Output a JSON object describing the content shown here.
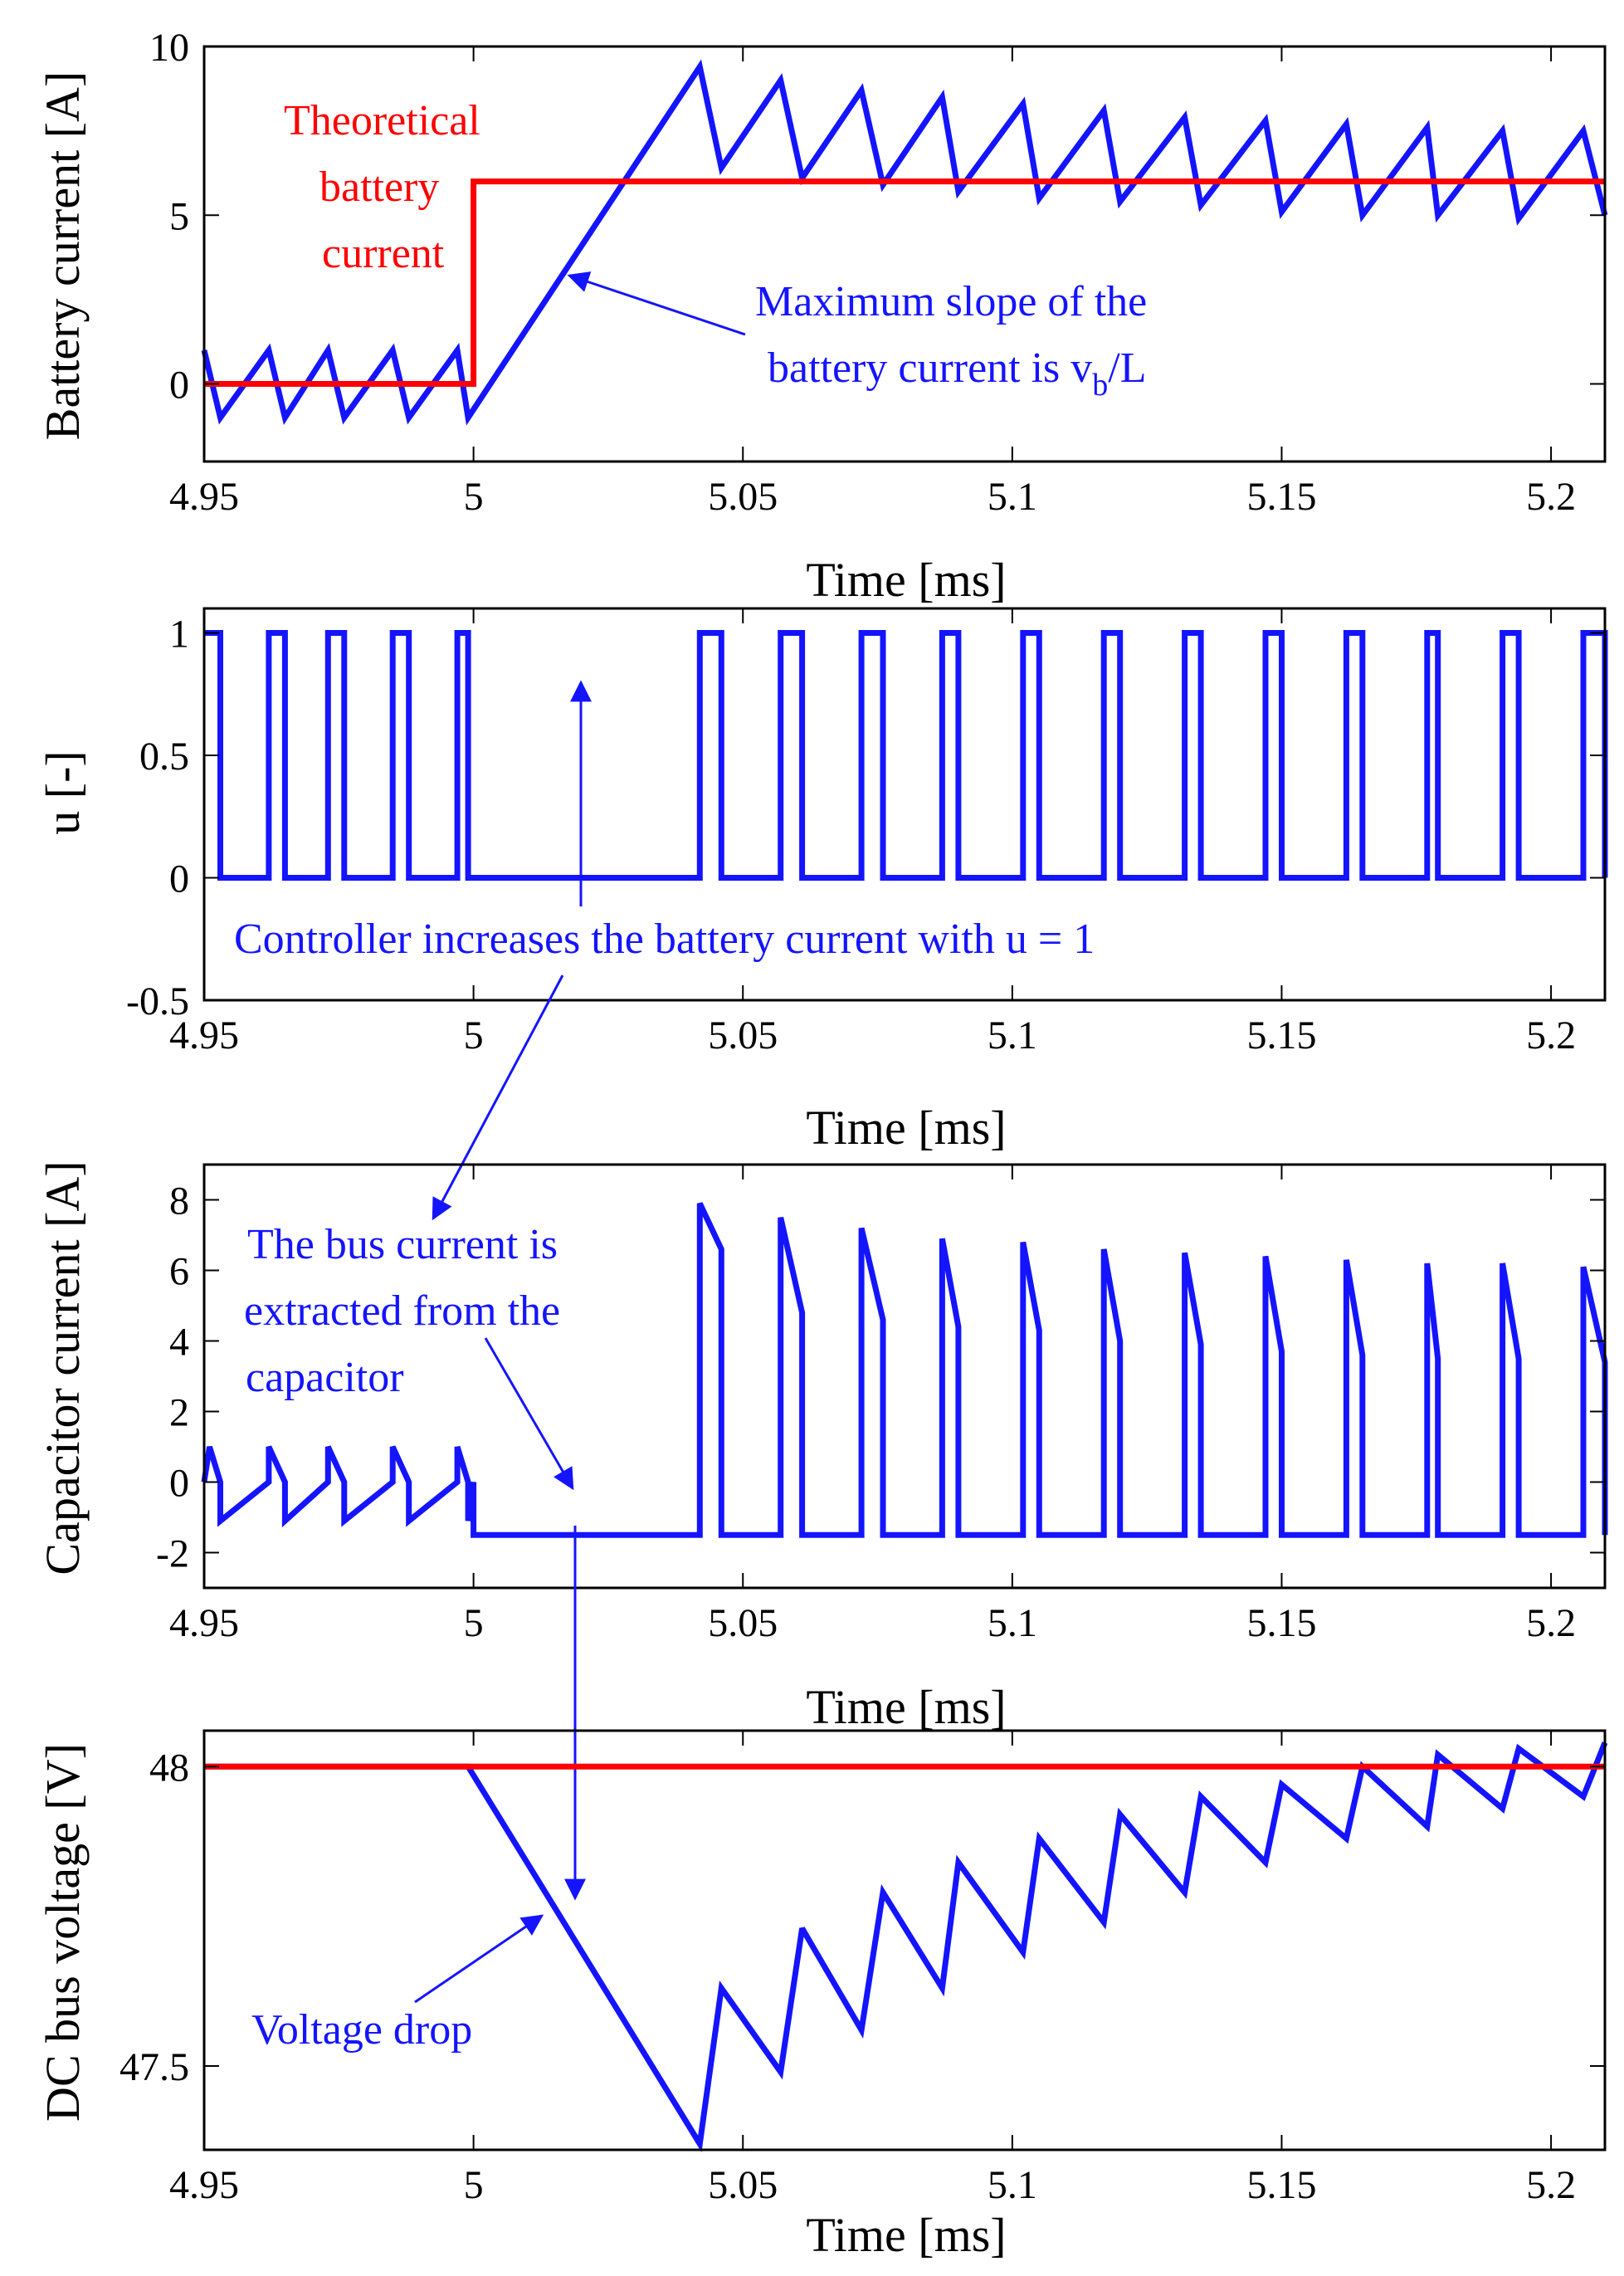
{
  "colors": {
    "signal": "#1414ff",
    "reference": "#ff0000",
    "axis": "#000000",
    "annotation_blue": "#1414ff"
  },
  "chart_data": [
    {
      "type": "line",
      "ylabel": "Battery current [A]",
      "xlabel": "Time [ms]",
      "xlim": [
        4.95,
        5.21
      ],
      "ylim": [
        -2.3,
        10
      ],
      "xticks": [
        {
          "v": 4.95,
          "label": "4.95"
        },
        {
          "v": 5.0,
          "label": "5"
        },
        {
          "v": 5.05,
          "label": "5.05"
        },
        {
          "v": 5.1,
          "label": "5.1"
        },
        {
          "v": 5.15,
          "label": "5.15"
        },
        {
          "v": 5.2,
          "label": "5.2"
        }
      ],
      "yticks": [
        {
          "v": 0,
          "label": "0"
        },
        {
          "v": 5,
          "label": "5"
        },
        {
          "v": 10,
          "label": "10"
        }
      ],
      "series": [
        {
          "name": "Battery current",
          "color": "#1414ff",
          "x": [
            4.95,
            4.953,
            4.962,
            4.965,
            4.973,
            4.976,
            4.985,
            4.988,
            4.997,
            4.999,
            5.042,
            5.046,
            5.057,
            5.061,
            5.072,
            5.076,
            5.087,
            5.09,
            5.102,
            5.105,
            5.117,
            5.12,
            5.132,
            5.135,
            5.147,
            5.15,
            5.162,
            5.165,
            5.177,
            5.179,
            5.191,
            5.194,
            5.206,
            5.21
          ],
          "values": [
            1,
            -1,
            1,
            -1,
            1,
            -1,
            1,
            -1,
            1,
            -1,
            9.4,
            6.4,
            9.0,
            6.1,
            8.7,
            5.9,
            8.5,
            5.7,
            8.3,
            5.5,
            8.1,
            5.4,
            7.9,
            5.3,
            7.8,
            5.1,
            7.7,
            5.0,
            7.6,
            5.0,
            7.5,
            4.9,
            7.5,
            5.0
          ]
        },
        {
          "name": "Theoretical battery current",
          "color": "#ff0000",
          "x": [
            4.95,
            5.0,
            5.0,
            5.21
          ],
          "values": [
            0,
            0,
            6,
            6
          ]
        }
      ],
      "annotations": [
        {
          "id": "theoretical",
          "lines": [
            "Theoretical",
            "battery",
            "current"
          ],
          "color": "#ff0000"
        },
        {
          "id": "slope",
          "lines": [
            "Maximum slope of the"
          ],
          "line2": "battery current is v",
          "subscript": "b",
          "suffix": "/L",
          "color": "#1414ff"
        }
      ]
    },
    {
      "type": "line",
      "ylabel": "u [-]",
      "xlabel": "Time [ms]",
      "xlim": [
        4.95,
        5.21
      ],
      "ylim": [
        -0.5,
        1.1
      ],
      "xticks": [
        {
          "v": 4.95,
          "label": "4.95"
        },
        {
          "v": 5.0,
          "label": "5"
        },
        {
          "v": 5.05,
          "label": "5.05"
        },
        {
          "v": 5.1,
          "label": "5.1"
        },
        {
          "v": 5.15,
          "label": "5.15"
        },
        {
          "v": 5.2,
          "label": "5.2"
        }
      ],
      "yticks": [
        {
          "v": -0.5,
          "label": "-0.5"
        },
        {
          "v": 0,
          "label": "0"
        },
        {
          "v": 0.5,
          "label": "0.5"
        },
        {
          "v": 1,
          "label": "1"
        }
      ],
      "series": [
        {
          "name": "Switching signal u",
          "color": "#1414ff",
          "step": true,
          "x": [
            4.95,
            4.951,
            4.953,
            4.962,
            4.965,
            4.973,
            4.976,
            4.985,
            4.988,
            4.997,
            4.999,
            5.042,
            5.046,
            5.057,
            5.061,
            5.072,
            5.076,
            5.087,
            5.09,
            5.102,
            5.105,
            5.117,
            5.12,
            5.132,
            5.135,
            5.147,
            5.15,
            5.162,
            5.165,
            5.177,
            5.179,
            5.191,
            5.194,
            5.206,
            5.21
          ],
          "values": [
            1,
            1,
            0,
            1,
            0,
            1,
            0,
            1,
            0,
            1,
            0,
            1,
            0,
            1,
            0,
            1,
            0,
            1,
            0,
            1,
            0,
            1,
            0,
            1,
            0,
            1,
            0,
            1,
            0,
            1,
            0,
            1,
            0,
            1,
            0
          ]
        }
      ],
      "annotations": [
        {
          "id": "controller",
          "lines": [
            "Controller increases the battery current with u = 1"
          ],
          "color": "#1414ff"
        }
      ]
    },
    {
      "type": "line",
      "ylabel": "Capacitor current [A]",
      "xlabel": "Time [ms]",
      "xlim": [
        4.95,
        5.21
      ],
      "ylim": [
        -3,
        9
      ],
      "xticks": [
        {
          "v": 4.95,
          "label": "4.95"
        },
        {
          "v": 5.0,
          "label": "5"
        },
        {
          "v": 5.05,
          "label": "5.05"
        },
        {
          "v": 5.1,
          "label": "5.1"
        },
        {
          "v": 5.15,
          "label": "5.15"
        },
        {
          "v": 5.2,
          "label": "5.2"
        }
      ],
      "yticks": [
        {
          "v": -2,
          "label": "-2"
        },
        {
          "v": 0,
          "label": "0"
        },
        {
          "v": 2,
          "label": "2"
        },
        {
          "v": 4,
          "label": "4"
        },
        {
          "v": 6,
          "label": "6"
        },
        {
          "v": 8,
          "label": "8"
        }
      ],
      "series": [
        {
          "name": "Capacitor current",
          "color": "#1414ff",
          "x": [
            4.95,
            4.951,
            4.953,
            4.953,
            4.962,
            4.962,
            4.965,
            4.965,
            4.973,
            4.973,
            4.976,
            4.976,
            4.985,
            4.985,
            4.988,
            4.988,
            4.997,
            4.997,
            4.999,
            4.999,
            5.0,
            5.0,
            5.0,
            5.042,
            5.042,
            5.046,
            5.046,
            5.057,
            5.057,
            5.061,
            5.061,
            5.072,
            5.072,
            5.076,
            5.076,
            5.087,
            5.087,
            5.09,
            5.09,
            5.102,
            5.102,
            5.105,
            5.105,
            5.117,
            5.117,
            5.12,
            5.12,
            5.132,
            5.132,
            5.135,
            5.135,
            5.147,
            5.147,
            5.15,
            5.15,
            5.162,
            5.162,
            5.165,
            5.165,
            5.177,
            5.177,
            5.179,
            5.179,
            5.191,
            5.191,
            5.194,
            5.194,
            5.206,
            5.206,
            5.21,
            5.21
          ],
          "values": [
            0,
            1,
            0,
            -1.1,
            0,
            1,
            0,
            -1.1,
            0,
            1,
            0,
            -1.1,
            0,
            1,
            0,
            -1.1,
            0,
            1,
            0,
            -1.1,
            0,
            -1.1,
            -1.5,
            -1.5,
            7.9,
            6.6,
            -1.5,
            -1.5,
            7.5,
            4.8,
            -1.5,
            -1.5,
            7.2,
            4.6,
            -1.5,
            -1.5,
            6.9,
            4.4,
            -1.5,
            -1.5,
            6.8,
            4.3,
            -1.5,
            -1.5,
            6.6,
            4.0,
            -1.5,
            -1.5,
            6.5,
            3.9,
            -1.5,
            -1.5,
            6.4,
            3.7,
            -1.5,
            -1.5,
            6.3,
            3.6,
            -1.5,
            -1.5,
            6.2,
            3.5,
            -1.5,
            -1.5,
            6.2,
            3.5,
            -1.5,
            -1.5,
            6.1,
            3.4,
            -1.5
          ]
        }
      ],
      "annotations": [
        {
          "id": "bus",
          "lines": [
            "The bus current is",
            "extracted from the",
            "capacitor"
          ],
          "color": "#1414ff"
        }
      ]
    },
    {
      "type": "line",
      "ylabel": "DC bus voltage [V]",
      "xlabel": "Time [ms]",
      "xlim": [
        4.95,
        5.21
      ],
      "ylim": [
        47.36,
        48.06
      ],
      "xticks": [
        {
          "v": 4.95,
          "label": "4.95"
        },
        {
          "v": 5.0,
          "label": "5"
        },
        {
          "v": 5.05,
          "label": "5.05"
        },
        {
          "v": 5.1,
          "label": "5.1"
        },
        {
          "v": 5.15,
          "label": "5.15"
        },
        {
          "v": 5.2,
          "label": "5.2"
        }
      ],
      "yticks": [
        {
          "v": 47.5,
          "label": "47.5"
        },
        {
          "v": 48,
          "label": "48"
        }
      ],
      "series": [
        {
          "name": "DC bus voltage",
          "color": "#1414ff",
          "x": [
            4.95,
            4.953,
            4.962,
            4.965,
            4.973,
            4.976,
            4.985,
            4.988,
            4.997,
            4.999,
            5.042,
            5.046,
            5.057,
            5.061,
            5.072,
            5.076,
            5.087,
            5.09,
            5.102,
            5.105,
            5.117,
            5.12,
            5.132,
            5.135,
            5.147,
            5.15,
            5.162,
            5.165,
            5.177,
            5.179,
            5.191,
            5.194,
            5.206,
            5.21
          ],
          "values": [
            48.0,
            48.0,
            48.0,
            48.0,
            48.0,
            48.0,
            48.0,
            48.0,
            48.0,
            48.0,
            47.37,
            47.63,
            47.49,
            47.73,
            47.56,
            47.79,
            47.63,
            47.84,
            47.69,
            47.88,
            47.74,
            47.92,
            47.79,
            47.95,
            47.84,
            47.97,
            47.88,
            48.0,
            47.9,
            48.02,
            47.93,
            48.03,
            47.95,
            48.04
          ]
        },
        {
          "name": "Reference voltage",
          "color": "#ff0000",
          "x": [
            4.95,
            5.21
          ],
          "values": [
            48,
            48
          ]
        }
      ],
      "annotations": [
        {
          "id": "drop",
          "lines": [
            "Voltage drop"
          ],
          "color": "#1414ff"
        }
      ]
    }
  ]
}
